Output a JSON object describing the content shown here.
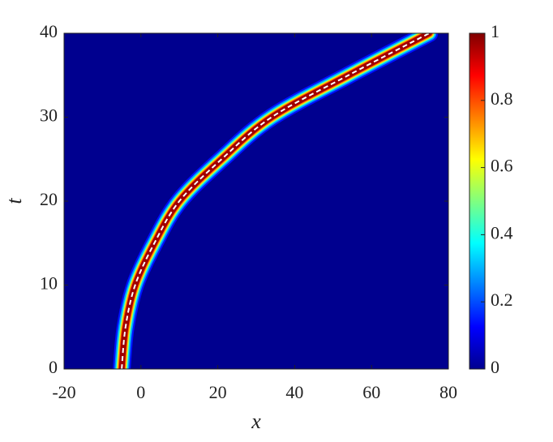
{
  "chart_data": {
    "type": "heatmap",
    "xlabel": "x",
    "ylabel": "t",
    "xlim": [
      -20,
      80
    ],
    "ylim": [
      0,
      40
    ],
    "xticks": [
      -20,
      0,
      20,
      40,
      60,
      80
    ],
    "yticks": [
      0,
      10,
      20,
      30,
      40
    ],
    "background": "#00008f",
    "series": [
      {
        "color": "#ffffff",
        "style": "dashed",
        "x": [
          -5,
          -4,
          -1.5,
          3.5,
          10,
          21,
          34,
          54,
          75
        ],
        "y": [
          0,
          5,
          10,
          15,
          20,
          25,
          30,
          35,
          40
        ]
      }
    ],
    "colorbar": {
      "clim": [
        0,
        1
      ],
      "ticks": [
        0,
        0.2,
        0.4,
        0.6,
        0.8,
        1
      ],
      "colormap": "jet"
    }
  }
}
